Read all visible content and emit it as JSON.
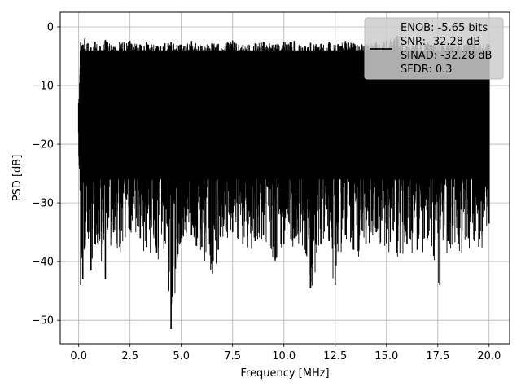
{
  "chart_data": {
    "type": "line",
    "title": "",
    "xlabel": "Frequency [MHz]",
    "ylabel": "PSD [dB]",
    "xlim": [
      -0.9,
      21.0
    ],
    "ylim": [
      -54.0,
      2.5
    ],
    "xticks": [
      0.0,
      2.5,
      5.0,
      7.5,
      10.0,
      12.5,
      15.0,
      17.5,
      20.0
    ],
    "xtick_labels": [
      "0.0",
      "2.5",
      "5.0",
      "7.5",
      "10.0",
      "12.5",
      "15.0",
      "17.5",
      "20.0"
    ],
    "yticks": [
      0,
      -10,
      -20,
      -30,
      -40,
      -50
    ],
    "ytick_labels": [
      "0",
      "−10",
      "−20",
      "−30",
      "−40",
      "−50"
    ],
    "grid": true,
    "line_color": "#000000",
    "legend": {
      "placement": "top-right",
      "entries": [
        "ENOB: -5.65 bits",
        "SNR: -32.28 dB",
        "SINAD: -32.28 dB",
        "SFDR: 0.3"
      ]
    },
    "x": [
      0.0,
      0.1,
      0.2,
      0.3,
      0.45,
      0.6,
      0.8,
      1.0,
      1.3,
      1.7,
      2.0,
      2.5,
      3.0,
      3.3,
      3.8,
      4.2,
      4.5,
      5.0,
      5.5,
      6.0,
      6.5,
      6.8,
      7.5,
      8.0,
      8.6,
      9.0,
      9.6,
      10.0,
      10.5,
      11.0,
      11.3,
      11.8,
      12.2,
      12.5,
      13.0,
      13.4,
      14.0,
      14.5,
      15.0,
      15.5,
      16.0,
      16.5,
      17.0,
      17.3,
      17.6,
      18.0,
      18.5,
      19.0,
      19.5,
      20.0
    ],
    "y_max": [
      -13.0,
      -2.5,
      -3.0,
      -2.0,
      -2.8,
      -3.5,
      -2.5,
      -3.2,
      -2.2,
      -3.4,
      -2.6,
      -2.4,
      -3.0,
      -2.5,
      -3.2,
      -2.8,
      -2.6,
      -3.0,
      -2.4,
      -3.2,
      -2.7,
      -2.9,
      -2.3,
      -3.1,
      -2.8,
      -2.5,
      -3.0,
      -2.6,
      -2.4,
      -3.3,
      -2.7,
      -2.9,
      -2.5,
      -3.1,
      -2.4,
      -2.8,
      -3.0,
      -2.6,
      -2.4,
      -1.5,
      -3.2,
      -2.7,
      -2.5,
      -3.0,
      -2.8,
      -2.6,
      -3.1,
      -2.4,
      -2.9,
      -3.0
    ],
    "y_min": [
      -18.0,
      -44.0,
      -43.0,
      -38.0,
      -35.0,
      -41.5,
      -37.0,
      -36.5,
      -43.0,
      -35.0,
      -37.5,
      -34.5,
      -36.0,
      -37.5,
      -38.5,
      -36.5,
      -51.5,
      -36.0,
      -35.5,
      -37.5,
      -41.5,
      -38.0,
      -35.0,
      -37.0,
      -36.5,
      -35.5,
      -39.5,
      -37.0,
      -36.0,
      -38.0,
      -44.5,
      -37.0,
      -36.5,
      -44.0,
      -35.5,
      -38.0,
      -37.0,
      -35.0,
      -36.5,
      -38.5,
      -37.0,
      -38.0,
      -36.0,
      -39.0,
      -44.0,
      -36.5,
      -37.0,
      -36.0,
      -37.5,
      -33.5
    ]
  }
}
